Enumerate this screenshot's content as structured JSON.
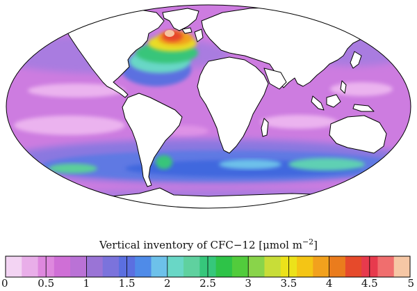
{
  "figure": {
    "colorbar_title": "Vertical inventory of CFC−12 [μmol m−2]",
    "colorbar_title_parts": {
      "prefix": "Vertical inventory of CFC−12 [",
      "unit_mu": "μmol m",
      "superscript": "−2",
      "suffix": "]"
    },
    "colorbar_ticks": [
      "0",
      "0.5",
      "1",
      "1.5",
      "2",
      "2.5",
      "3",
      "3.5",
      "4",
      "4.5",
      "5"
    ],
    "colorbar_range": [
      0,
      5
    ],
    "colorbar_step": 0.2,
    "colorbar_colors": [
      "#f3d4f3",
      "#e9aee9",
      "#de88de",
      "#cf6fd6",
      "#ba72d6",
      "#9a74d6",
      "#7b73dc",
      "#5b6fe0",
      "#4f8be8",
      "#6dc1ea",
      "#69d7c6",
      "#5fd19f",
      "#36c77b",
      "#2ec348",
      "#52cc3c",
      "#89d44a",
      "#c8dd38",
      "#ece21a",
      "#f4c515",
      "#f2a11d",
      "#ea7c1d",
      "#e64a2b",
      "#e73a4d",
      "#f06e6e",
      "#f6c7a5"
    ],
    "map_projection": "Mollweide",
    "ocean_regions": {
      "background": "#cd7ce0",
      "pale_subtropics": "#ebb3ef",
      "mid_latitude": "#a97be0",
      "southern_band": "#5e79e3",
      "southern_core": "#3f68de",
      "north_atlantic_green": "#39c57a",
      "north_atlantic_yellow": "#e9dc28",
      "north_atlantic_red": "#e6462b",
      "labrador_peak": "#f6c3a0",
      "land": "#ffffff"
    }
  }
}
